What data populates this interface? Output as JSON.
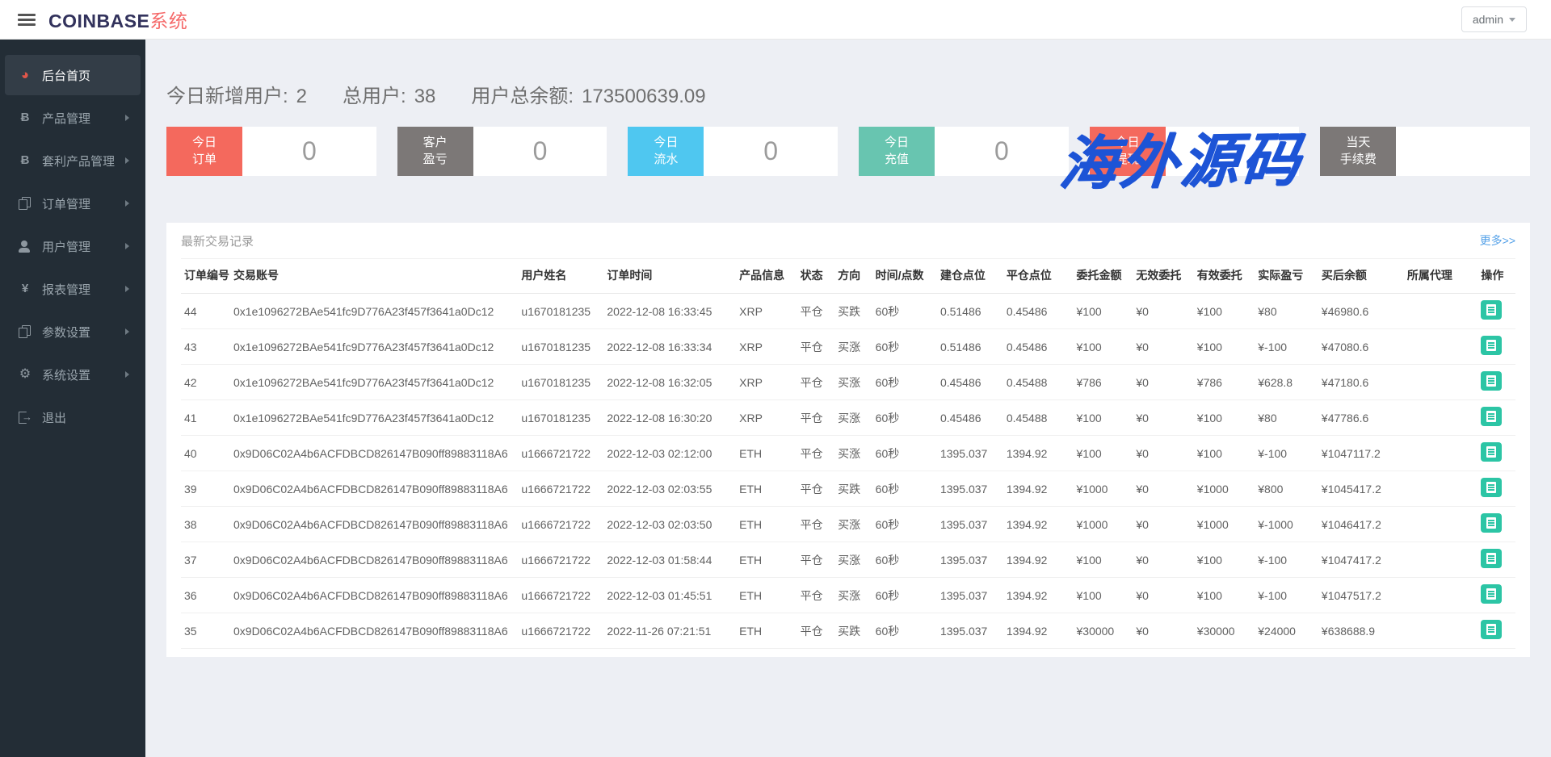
{
  "header": {
    "brand_primary": "COINBASE",
    "brand_secondary": "系统",
    "user_menu_label": "admin"
  },
  "sidebar": {
    "items": [
      {
        "label": "后台首页",
        "icon": "dashboard",
        "active": true,
        "has_arrow": false
      },
      {
        "label": "产品管理",
        "icon": "bitcoin",
        "active": false,
        "has_arrow": true
      },
      {
        "label": "套利产品管理",
        "icon": "bitcoin",
        "active": false,
        "has_arrow": true
      },
      {
        "label": "订单管理",
        "icon": "orders",
        "active": false,
        "has_arrow": true
      },
      {
        "label": "用户管理",
        "icon": "user",
        "active": false,
        "has_arrow": true
      },
      {
        "label": "报表管理",
        "icon": "yen",
        "active": false,
        "has_arrow": true
      },
      {
        "label": "参数设置",
        "icon": "params",
        "active": false,
        "has_arrow": true
      },
      {
        "label": "系统设置",
        "icon": "gear",
        "active": false,
        "has_arrow": true
      },
      {
        "label": "退出",
        "icon": "logout",
        "active": false,
        "has_arrow": false
      }
    ]
  },
  "stats": {
    "groups": [
      {
        "label": "今日新增用户:",
        "value": "2"
      },
      {
        "label": "总用户:",
        "value": "38"
      },
      {
        "label": "用户总余额:",
        "value": "173500639.09"
      }
    ]
  },
  "cards": [
    {
      "label": "今日\n订单",
      "value": "0",
      "color": "#f4695d"
    },
    {
      "label": "客户\n盈亏",
      "value": "0",
      "color": "#7c7877"
    },
    {
      "label": "今日\n流水",
      "value": "0",
      "color": "#4fc7f0"
    },
    {
      "label": "今日\n充值",
      "value": "0",
      "color": "#68c5b0"
    },
    {
      "label": "今日\n提现",
      "value": "",
      "color": "#f4695d"
    },
    {
      "label": "当天\n手续费",
      "value": "",
      "color": "#7c7877"
    }
  ],
  "watermark": {
    "text": "海外源码",
    "color": "#1d54d6"
  },
  "panel": {
    "title": "最新交易记录",
    "more_link": "更多>>"
  },
  "table": {
    "headers": [
      "订单编号",
      "交易账号",
      "用户姓名",
      "订单时间",
      "产品信息",
      "状态",
      "方向",
      "时间/点数",
      "建仓点位",
      "平仓点位",
      "委托金额",
      "无效委托",
      "有效委托",
      "实际盈亏",
      "买后余额",
      "所属代理",
      "操作"
    ],
    "rows": [
      {
        "id": "44",
        "account": "0x1e1096272BAe541fc9D776A23f457f3641a0Dc12",
        "username": "u1670181235",
        "time": "2022-12-08 16:33:45",
        "product": "XRP",
        "status": "平仓",
        "direction": "买跌",
        "direction_color": "green",
        "duration": "60秒",
        "open_point": "0.51486",
        "close_point": "0.45486",
        "close_color": "green",
        "amount": "¥100",
        "invalid": "¥0",
        "valid": "¥100",
        "profit": "¥80",
        "profit_color": "red",
        "balance": "¥46980.6",
        "agent": ""
      },
      {
        "id": "43",
        "account": "0x1e1096272BAe541fc9D776A23f457f3641a0Dc12",
        "username": "u1670181235",
        "time": "2022-12-08 16:33:34",
        "product": "XRP",
        "status": "平仓",
        "direction": "买涨",
        "direction_color": "red",
        "duration": "60秒",
        "open_point": "0.51486",
        "close_point": "0.45486",
        "close_color": "green",
        "amount": "¥100",
        "invalid": "¥0",
        "valid": "¥100",
        "profit": "¥-100",
        "profit_color": "green",
        "balance": "¥47080.6",
        "agent": ""
      },
      {
        "id": "42",
        "account": "0x1e1096272BAe541fc9D776A23f457f3641a0Dc12",
        "username": "u1670181235",
        "time": "2022-12-08 16:32:05",
        "product": "XRP",
        "status": "平仓",
        "direction": "买涨",
        "direction_color": "red",
        "duration": "60秒",
        "open_point": "0.45486",
        "close_point": "0.45488",
        "close_color": "red",
        "amount": "¥786",
        "invalid": "¥0",
        "valid": "¥786",
        "profit": "¥628.8",
        "profit_color": "red",
        "balance": "¥47180.6",
        "agent": ""
      },
      {
        "id": "41",
        "account": "0x1e1096272BAe541fc9D776A23f457f3641a0Dc12",
        "username": "u1670181235",
        "time": "2022-12-08 16:30:20",
        "product": "XRP",
        "status": "平仓",
        "direction": "买涨",
        "direction_color": "red",
        "duration": "60秒",
        "open_point": "0.45486",
        "close_point": "0.45488",
        "close_color": "red",
        "amount": "¥100",
        "invalid": "¥0",
        "valid": "¥100",
        "profit": "¥80",
        "profit_color": "red",
        "balance": "¥47786.6",
        "agent": ""
      },
      {
        "id": "40",
        "account": "0x9D06C02A4b6ACFDBCD826147B090ff89883118A6",
        "username": "u1666721722",
        "time": "2022-12-03 02:12:00",
        "product": "ETH",
        "status": "平仓",
        "direction": "买涨",
        "direction_color": "red",
        "duration": "60秒",
        "open_point": "1395.037",
        "close_point": "1394.92",
        "close_color": "green",
        "amount": "¥100",
        "invalid": "¥0",
        "valid": "¥100",
        "profit": "¥-100",
        "profit_color": "green",
        "balance": "¥1047117.2",
        "agent": ""
      },
      {
        "id": "39",
        "account": "0x9D06C02A4b6ACFDBCD826147B090ff89883118A6",
        "username": "u1666721722",
        "time": "2022-12-03 02:03:55",
        "product": "ETH",
        "status": "平仓",
        "direction": "买跌",
        "direction_color": "green",
        "duration": "60秒",
        "open_point": "1395.037",
        "close_point": "1394.92",
        "close_color": "green",
        "amount": "¥1000",
        "invalid": "¥0",
        "valid": "¥1000",
        "profit": "¥800",
        "profit_color": "red",
        "balance": "¥1045417.2",
        "agent": ""
      },
      {
        "id": "38",
        "account": "0x9D06C02A4b6ACFDBCD826147B090ff89883118A6",
        "username": "u1666721722",
        "time": "2022-12-03 02:03:50",
        "product": "ETH",
        "status": "平仓",
        "direction": "买涨",
        "direction_color": "red",
        "duration": "60秒",
        "open_point": "1395.037",
        "close_point": "1394.92",
        "close_color": "green",
        "amount": "¥1000",
        "invalid": "¥0",
        "valid": "¥1000",
        "profit": "¥-1000",
        "profit_color": "green",
        "balance": "¥1046417.2",
        "agent": ""
      },
      {
        "id": "37",
        "account": "0x9D06C02A4b6ACFDBCD826147B090ff89883118A6",
        "username": "u1666721722",
        "time": "2022-12-03 01:58:44",
        "product": "ETH",
        "status": "平仓",
        "direction": "买涨",
        "direction_color": "red",
        "duration": "60秒",
        "open_point": "1395.037",
        "close_point": "1394.92",
        "close_color": "green",
        "amount": "¥100",
        "invalid": "¥0",
        "valid": "¥100",
        "profit": "¥-100",
        "profit_color": "green",
        "balance": "¥1047417.2",
        "agent": ""
      },
      {
        "id": "36",
        "account": "0x9D06C02A4b6ACFDBCD826147B090ff89883118A6",
        "username": "u1666721722",
        "time": "2022-12-03 01:45:51",
        "product": "ETH",
        "status": "平仓",
        "direction": "买涨",
        "direction_color": "red",
        "duration": "60秒",
        "open_point": "1395.037",
        "close_point": "1394.92",
        "close_color": "green",
        "amount": "¥100",
        "invalid": "¥0",
        "valid": "¥100",
        "profit": "¥-100",
        "profit_color": "green",
        "balance": "¥1047517.2",
        "agent": ""
      },
      {
        "id": "35",
        "account": "0x9D06C02A4b6ACFDBCD826147B090ff89883118A6",
        "username": "u1666721722",
        "time": "2022-11-26 07:21:51",
        "product": "ETH",
        "status": "平仓",
        "direction": "买跌",
        "direction_color": "green",
        "duration": "60秒",
        "open_point": "1395.037",
        "close_point": "1394.92",
        "close_color": "green",
        "amount": "¥30000",
        "invalid": "¥0",
        "valid": "¥30000",
        "profit": "¥24000",
        "profit_color": "red",
        "balance": "¥638688.9",
        "agent": ""
      }
    ]
  }
}
